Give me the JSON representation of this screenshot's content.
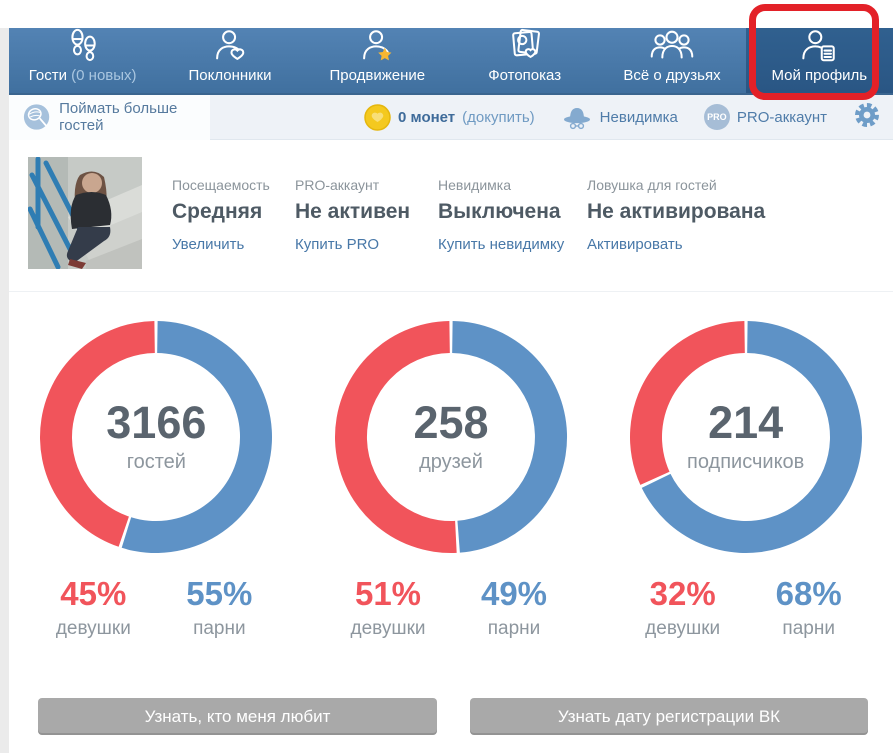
{
  "nav": {
    "tabs": [
      {
        "label": "Гости",
        "suffix": "(0 новых)",
        "icon": "footprints-icon"
      },
      {
        "label": "Поклонники",
        "icon": "admirer-heart-icon"
      },
      {
        "label": "Продвижение",
        "icon": "promotion-star-icon"
      },
      {
        "label": "Фотопоказ",
        "icon": "photoshow-icon"
      },
      {
        "label": "Всё о друзьях",
        "icon": "friends-group-icon"
      },
      {
        "label": "Мой профиль",
        "icon": "profile-card-icon",
        "selected": true,
        "highlighted": true
      }
    ]
  },
  "toolbar": {
    "catch_guests": "Поймать больше гостей",
    "coins_count": "0 монет",
    "coins_buy": "(докупить)",
    "invisible": "Невидимка",
    "pro_badge": "PRO",
    "pro_account": "PRO-аккаунт"
  },
  "profile": {
    "stats": [
      {
        "label": "Посещаемость",
        "value": "Средняя",
        "action": "Увеличить"
      },
      {
        "label": "PRO-аккаунт",
        "value": "Не активен",
        "action": "Купить PRO"
      },
      {
        "label": "Невидимка",
        "value": "Выключена",
        "action": "Купить невидимку"
      },
      {
        "label": "Ловушка для гостей",
        "value": "Не активирована",
        "action": "Активировать"
      }
    ]
  },
  "chart_data": {
    "type": "donut-set",
    "description": "Three donut charts of audience gender split; blue segment starts at 12 o'clock clockwise",
    "charts": [
      {
        "count": "3166",
        "count_label": "гостей",
        "girls": {
          "pct": 45,
          "pct_text": "45%",
          "label": "девушки",
          "color": "#f1545b"
        },
        "boys": {
          "pct": 55,
          "pct_text": "55%",
          "label": "парни",
          "color": "#5e92c6"
        },
        "draw": [
          "boys",
          "girls"
        ]
      },
      {
        "count": "258",
        "count_label": "друзей",
        "girls": {
          "pct": 51,
          "pct_text": "51%",
          "label": "девушки",
          "color": "#f1545b"
        },
        "boys": {
          "pct": 49,
          "pct_text": "49%",
          "label": "парни",
          "color": "#5e92c6"
        },
        "draw": [
          "boys",
          "girls"
        ]
      },
      {
        "count": "214",
        "count_label": "подписчиков",
        "girls": {
          "pct": 32,
          "pct_text": "32%",
          "label": "девушки",
          "color": "#f1545b"
        },
        "boys": {
          "pct": 68,
          "pct_text": "68%",
          "label": "парни",
          "color": "#5e92c6"
        },
        "draw": [
          "boys",
          "girls"
        ]
      }
    ]
  },
  "buttons": {
    "who_loves_me": "Узнать, кто меня любит",
    "reg_date": "Узнать дату регистрации ВК"
  },
  "colors": {
    "nav_blue": "#4a7aab",
    "selected_tab": "#2d5c8d",
    "annotation_red": "#e32128",
    "girls_red": "#f1545b",
    "boys_blue": "#5e92c6",
    "link_blue": "#4878a8",
    "coin_yellow": "#f4c91f",
    "button_gray": "#a9a9a9"
  }
}
